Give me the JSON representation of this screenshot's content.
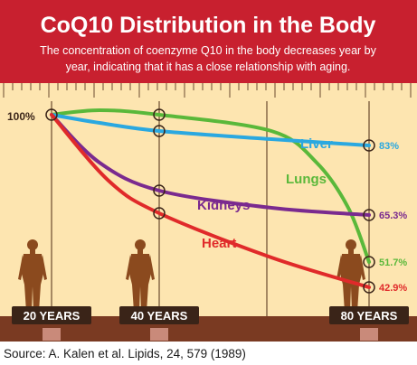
{
  "header": {
    "title": "CoQ10 Distribution in the Body",
    "subtitle_line1": "The concentration of coenzyme Q10 in the body decreases year by",
    "subtitle_line2": "year, indicating that it has a close relationship with aging."
  },
  "source": "Source: A. Kalen et al. Lipids, 24, 579 (1989)",
  "colors": {
    "header_bg": "#c8202f",
    "header_text": "#ffffff",
    "plot_bg": "#fde5b0",
    "grid": "#6b4a2f",
    "axis_bar": "#7a3a22",
    "xtick_bg": "#3a2418",
    "figure": "#8b4a1e",
    "liver": "#2aa8e0",
    "lungs": "#5ab83a",
    "kidneys": "#7a2a8f",
    "heart": "#e02a2a",
    "start_label": "#3a2418"
  },
  "chart_data": {
    "type": "line",
    "x": [
      20,
      40,
      80
    ],
    "x_tick_labels": [
      "20 YEARS",
      "40 YEARS",
      "80 YEARS"
    ],
    "start_label": "100%",
    "ylim": [
      35,
      100
    ],
    "grid": true,
    "series": [
      {
        "name": "Liver",
        "key": "liver",
        "values": [
          100,
          95,
          83
        ],
        "end_label": "83%"
      },
      {
        "name": "Lungs",
        "key": "lungs",
        "values": [
          100,
          100,
          51.7
        ],
        "end_label": "51.7%"
      },
      {
        "name": "Kidneys",
        "key": "kidneys",
        "values": [
          100,
          72,
          65.3
        ],
        "end_label": "65.3%"
      },
      {
        "name": "Heart",
        "key": "heart",
        "values": [
          100,
          68,
          42.9
        ],
        "end_label": "42.9%"
      }
    ]
  }
}
